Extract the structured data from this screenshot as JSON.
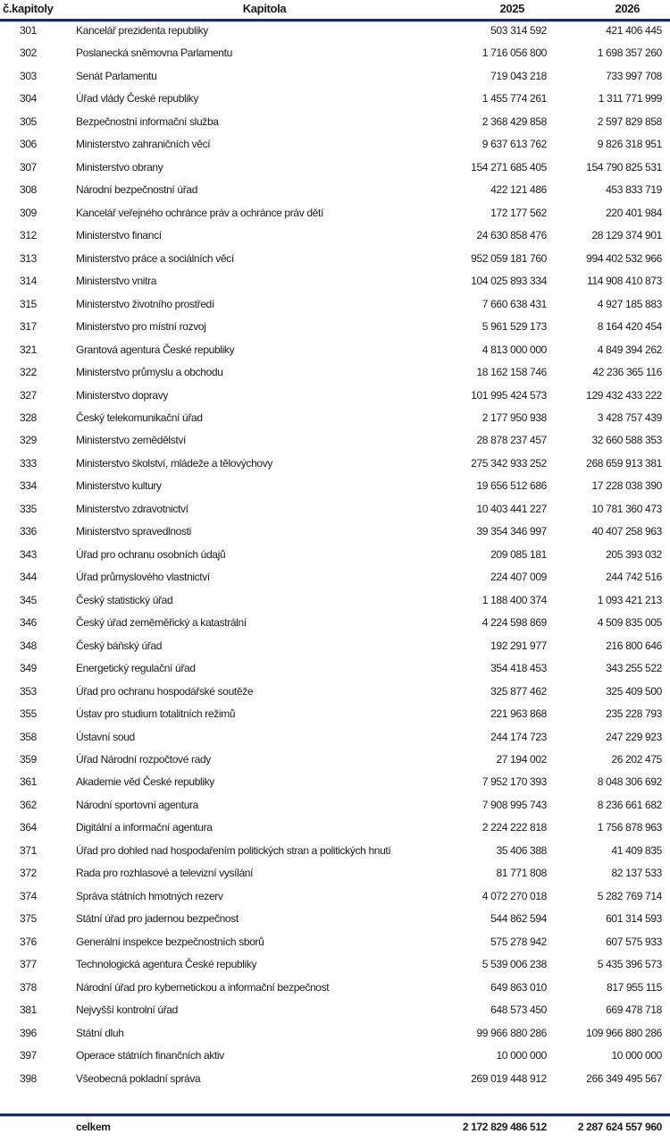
{
  "header": {
    "number": "č.kapitoly",
    "name": "Kapitola",
    "year1": "2025",
    "year2": "2026"
  },
  "rows": [
    {
      "number": "301",
      "name": "Kancelář prezidenta republiky",
      "y2025": "503 314 592",
      "y2026": "421 406 445"
    },
    {
      "number": "302",
      "name": "Poslanecká sněmovna Parlamentu",
      "y2025": "1 716 056 800",
      "y2026": "1 698 357 260"
    },
    {
      "number": "303",
      "name": "Senát Parlamentu",
      "y2025": "719 043 218",
      "y2026": "733 997 708"
    },
    {
      "number": "304",
      "name": "Úřad vlády České republiky",
      "y2025": "1 455 774 261",
      "y2026": "1 311 771 999"
    },
    {
      "number": "305",
      "name": "Bezpečnostní informační služba",
      "y2025": "2 368 429 858",
      "y2026": "2 597 829 858"
    },
    {
      "number": "306",
      "name": "Ministerstvo zahraničních věcí",
      "y2025": "9 637 613 762",
      "y2026": "9 826 318 951"
    },
    {
      "number": "307",
      "name": "Ministerstvo obrany",
      "y2025": "154 271 685 405",
      "y2026": "154 790 825 531"
    },
    {
      "number": "308",
      "name": "Národní bezpečnostní úřad",
      "y2025": "422 121 486",
      "y2026": "453 833 719"
    },
    {
      "number": "309",
      "name": "Kancelář veřejného ochránce práv a ochránce práv dětí",
      "y2025": "172 177 562",
      "y2026": "220 401 984"
    },
    {
      "number": "312",
      "name": "Ministerstvo financí",
      "y2025": "24 630 858 476",
      "y2026": "28 129 374 901"
    },
    {
      "number": "313",
      "name": "Ministerstvo práce a sociálních věcí",
      "y2025": "952 059 181 760",
      "y2026": "994 402 532 966"
    },
    {
      "number": "314",
      "name": "Ministerstvo vnitra",
      "y2025": "104 025 893 334",
      "y2026": "114 908 410 873"
    },
    {
      "number": "315",
      "name": "Ministerstvo životního prostředí",
      "y2025": "7 660 638 431",
      "y2026": "4 927 185 883"
    },
    {
      "number": "317",
      "name": "Ministerstvo pro místní rozvoj",
      "y2025": "5 961 529 173",
      "y2026": "8 164 420 454"
    },
    {
      "number": "321",
      "name": "Grantová agentura České republiky",
      "y2025": "4 813 000 000",
      "y2026": "4 849 394 262"
    },
    {
      "number": "322",
      "name": "Ministerstvo průmyslu a obchodu",
      "y2025": "18 162 158 746",
      "y2026": "42 236 365 116"
    },
    {
      "number": "327",
      "name": "Ministerstvo dopravy",
      "y2025": "101 995 424 573",
      "y2026": "129 432 433 222"
    },
    {
      "number": "328",
      "name": "Český telekomunikační úřad",
      "y2025": "2 177 950 938",
      "y2026": "3 428 757 439"
    },
    {
      "number": "329",
      "name": "Ministerstvo zemědělství",
      "y2025": "28 878 237 457",
      "y2026": "32 660 588 353"
    },
    {
      "number": "333",
      "name": "Ministerstvo školství, mládeže a tělovýchovy",
      "y2025": "275 342 933 252",
      "y2026": "268 659 913 381"
    },
    {
      "number": "334",
      "name": "Ministerstvo kultury",
      "y2025": "19 656 512 686",
      "y2026": "17 228 038 390"
    },
    {
      "number": "335",
      "name": "Ministerstvo zdravotnictví",
      "y2025": "10 403 441 227",
      "y2026": "10 781 360 473"
    },
    {
      "number": "336",
      "name": "Ministerstvo spravedlnosti",
      "y2025": "39 354 346 997",
      "y2026": "40 407 258 963"
    },
    {
      "number": "343",
      "name": "Úřad pro ochranu osobních údajů",
      "y2025": "209 085 181",
      "y2026": "205 393 032"
    },
    {
      "number": "344",
      "name": "Úřad průmyslového vlastnictví",
      "y2025": "224 407 009",
      "y2026": "244 742 516"
    },
    {
      "number": "345",
      "name": "Český statistický úřad",
      "y2025": "1 188 400 374",
      "y2026": "1 093 421 213"
    },
    {
      "number": "346",
      "name": "Český úřad zeměměřický a katastrální",
      "y2025": "4 224 598 869",
      "y2026": "4 509 835 005"
    },
    {
      "number": "348",
      "name": "Český báňský úřad",
      "y2025": "192 291 977",
      "y2026": "216 800 646"
    },
    {
      "number": "349",
      "name": "Energetický regulační úřad",
      "y2025": "354 418 453",
      "y2026": "343 255 522"
    },
    {
      "number": "353",
      "name": "Úřad pro ochranu hospodářské soutěže",
      "y2025": "325 877 462",
      "y2026": "325 409 500"
    },
    {
      "number": "355",
      "name": "Ústav pro studium totalitních režimů",
      "y2025": "221 963 868",
      "y2026": "235 228 793"
    },
    {
      "number": "358",
      "name": "Ústavní soud",
      "y2025": "244 174 723",
      "y2026": "247 229 923"
    },
    {
      "number": "359",
      "name": "Úřad Národní rozpočtové rady",
      "y2025": "27 194 002",
      "y2026": "26 202 475"
    },
    {
      "number": "361",
      "name": "Akademie věd České republiky",
      "y2025": "7 952 170 393",
      "y2026": "8 048 306 692"
    },
    {
      "number": "362",
      "name": "Národní sportovní agentura",
      "y2025": "7 908 995 743",
      "y2026": "8 236 661 682"
    },
    {
      "number": "364",
      "name": "Digitální a informační agentura",
      "y2025": "2 224 222 818",
      "y2026": "1 756 878 963"
    },
    {
      "number": "371",
      "name": "Úřad pro dohled nad hospodařením politických stran a politických hnutí",
      "y2025": "35 406 388",
      "y2026": "41 409 835"
    },
    {
      "number": "372",
      "name": "Rada pro rozhlasové a televizní vysílání",
      "y2025": "81 771 808",
      "y2026": "82 137 533"
    },
    {
      "number": "374",
      "name": "Správa státních hmotných rezerv",
      "y2025": "4 072 270 018",
      "y2026": "5 282 769 714"
    },
    {
      "number": "375",
      "name": "Státní úřad pro jadernou bezpečnost",
      "y2025": "544 862 594",
      "y2026": "601 314 593"
    },
    {
      "number": "376",
      "name": "Generální inspekce bezpečnostních sborů",
      "y2025": "575 278 942",
      "y2026": "607 575 933"
    },
    {
      "number": "377",
      "name": "Technologická agentura České republiky",
      "y2025": "5 539 006 238",
      "y2026": "5 435 396 573"
    },
    {
      "number": "378",
      "name": "Národní úřad pro kybernetickou a informační bezpečnost",
      "y2025": "649 863 010",
      "y2026": "817 955 115"
    },
    {
      "number": "381",
      "name": "Nejvyšší kontrolní úřad",
      "y2025": "648 573 450",
      "y2026": "669 478 718"
    },
    {
      "number": "396",
      "name": "Státní dluh",
      "y2025": "99 966 880 286",
      "y2026": "109 966 880 286"
    },
    {
      "number": "397",
      "name": "Operace státních finančních aktiv",
      "y2025": "10 000 000",
      "y2026": "10 000 000"
    },
    {
      "number": "398",
      "name": "Všeobecná pokladní správa",
      "y2025": "269 019 448 912",
      "y2026": "266 349 495 567"
    }
  ],
  "total": {
    "label": "celkem",
    "y2025": "2 172 829 486 512",
    "y2026": "2 287 624 557 960"
  },
  "colors": {
    "rule": "#1f2a5c",
    "text": "#1a1a1a"
  }
}
